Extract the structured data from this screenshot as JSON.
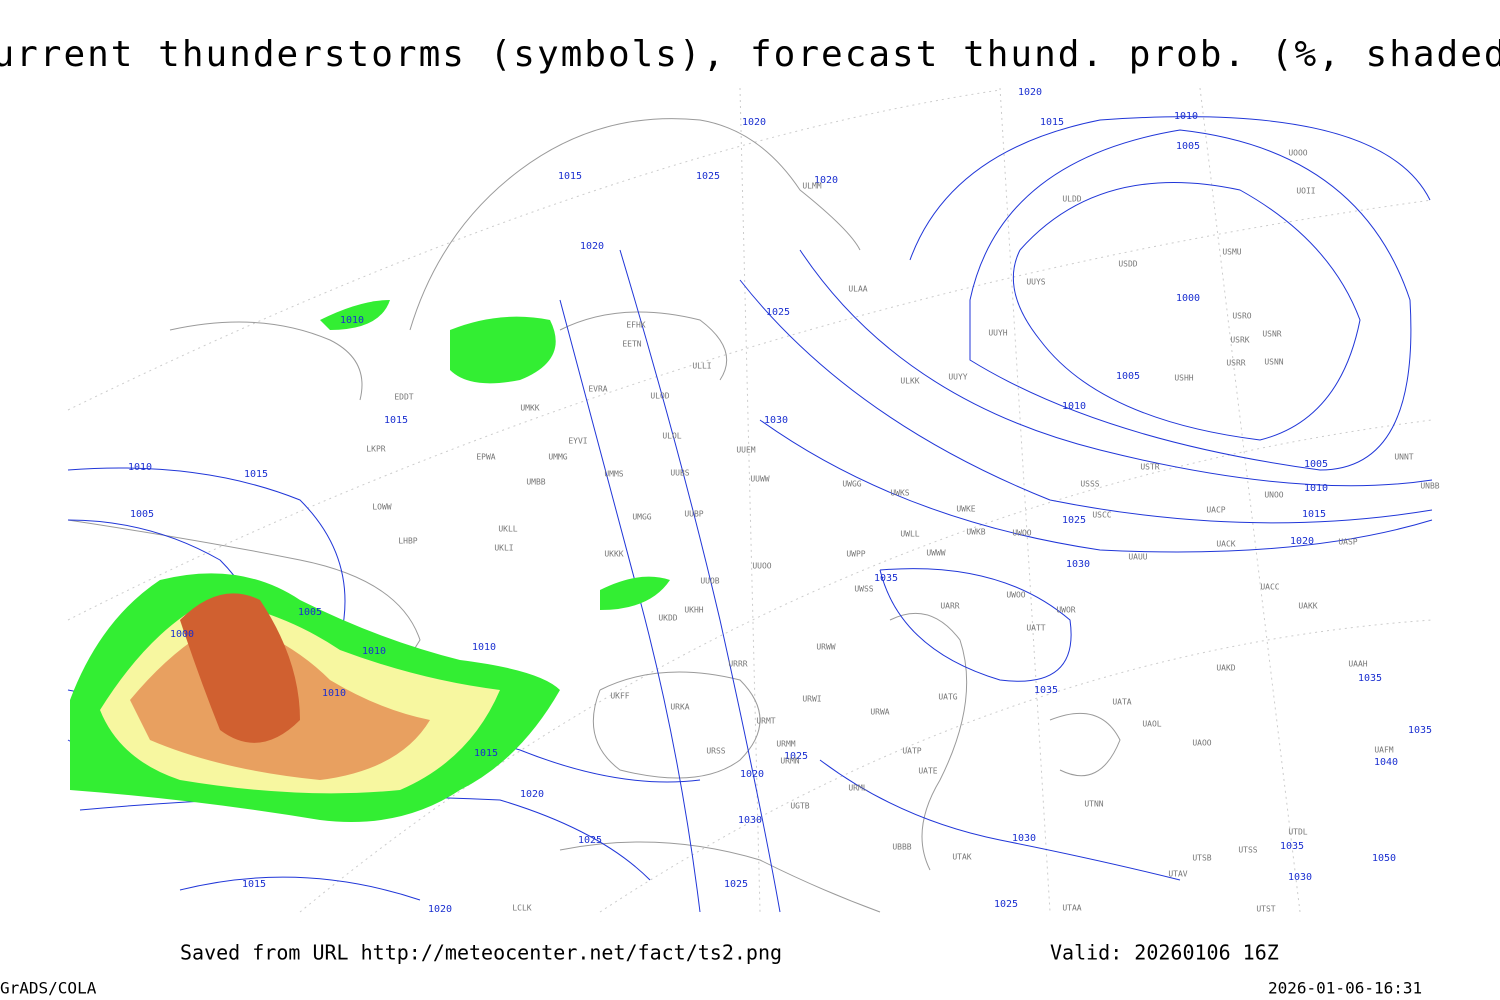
{
  "title": "Current thunderstorms (symbols), forecast thund. prob. (%, shaded)",
  "isobar_labels": [
    "1020",
    "1015",
    "1010",
    "1005",
    "1020",
    "1015",
    "1025",
    "1020",
    "1020",
    "1010",
    "1000",
    "1025",
    "1015",
    "1005",
    "1010",
    "1030",
    "1010",
    "1015",
    "1005",
    "1010",
    "1005",
    "1015",
    "1025",
    "1020",
    "1030",
    "1035",
    "1005",
    "1000",
    "1010",
    "1010",
    "1035",
    "1035",
    "1010",
    "1015",
    "1025",
    "1020",
    "1020",
    "1030",
    "1030",
    "1025",
    "1035",
    "1050",
    "1030",
    "1025",
    "1015",
    "1020",
    "1025",
    "1040",
    "1035"
  ],
  "stations": [
    "EFHK",
    "EETN",
    "EVRA",
    "ULOD",
    "EDDT",
    "UMKK",
    "ULOL",
    "EYVI",
    "UUEM",
    "LKPR",
    "EPWA",
    "UMMG",
    "UMMS",
    "UUBS",
    "UMBB",
    "UUWW",
    "UWGG",
    "UWKS",
    "UWKE",
    "LOWW",
    "UUBP",
    "UMGG",
    "UKLL",
    "UWLL",
    "UWKB",
    "UWOO",
    "LHBP",
    "UKLI",
    "UWWW",
    "UWPP",
    "UKKK",
    "UUOO",
    "UAUU",
    "UACK",
    "UASP",
    "UACC",
    "UUOB",
    "UWSS",
    "UAKK",
    "UARR",
    "UWOO",
    "UWOR",
    "UKHH",
    "UKDD",
    "UATT",
    "URWW",
    "URRR",
    "UAKD",
    "UAAH",
    "UATG",
    "URWI",
    "UATA",
    "UKFF",
    "URKA",
    "URWA",
    "URMT",
    "UAOL",
    "UAOO",
    "UAFM",
    "URMM",
    "UATP",
    "URSS",
    "URMN",
    "UATE",
    "URML",
    "UGTB",
    "UTNN",
    "UBBB",
    "UTAK",
    "UTSB",
    "UTSS",
    "UTAV",
    "UTDL",
    "UTST",
    "UTAA",
    "LCLK",
    "ULLI",
    "ULAA",
    "ULMM",
    "ULDD",
    "UOOO",
    "UOII",
    "USDD",
    "USMU",
    "UUYS",
    "UUYH",
    "USRO",
    "USRK",
    "USNR",
    "USRR",
    "USNN",
    "USHH",
    "ULKK",
    "UUYY",
    "USTR",
    "UNNT",
    "UNBB",
    "UNOO",
    "UACP",
    "USCC",
    "USSS"
  ],
  "footer": {
    "source": "Saved from URL http://meteocenter.net/fact/ts2.png",
    "valid": "Valid: 20260106 16Z",
    "software": "GrADS/COLA",
    "timestamp": "2026-01-06-16:31"
  }
}
